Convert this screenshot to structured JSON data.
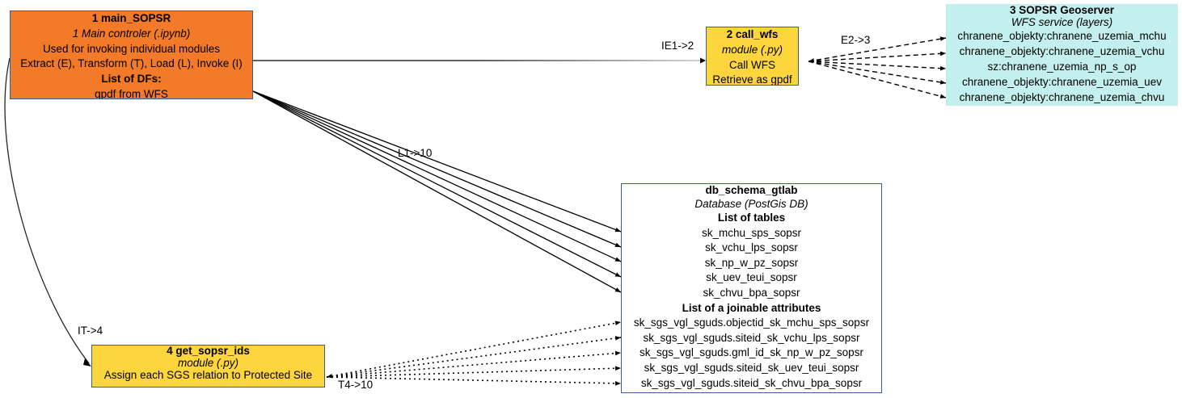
{
  "nodes": {
    "main": {
      "title": "1 main_SOPSR",
      "subtitle": "1 Main controler (.ipynb)",
      "line1": "Used for invoking individual modules",
      "line2": "Extract (E), Transform (T), Load (L), Invoke (I)",
      "dfs_header": "List of DFs:",
      "dfs_item": "gpdf from WFS",
      "color": "#f37a28"
    },
    "call_wfs": {
      "title": "2 call_wfs",
      "subtitle": "module (.py)",
      "line1": "Call WFS",
      "line2": "Retrieve as gpdf",
      "color": "#fdd53c"
    },
    "geoserver": {
      "title": "3 SOPSR Geoserver",
      "subtitle": "WFS service (layers)",
      "layers": [
        "chranene_objekty:chranene_uzemia_mchu",
        "chranene_objekty:chranene_uzemia_vchu",
        "sz:chranene_uzemia_np_s_op",
        "chranene_objekty:chranene_uzemia_uev",
        "chranene_objekty:chranene_uzemia_chvu"
      ],
      "color": "#c3efee"
    },
    "get_ids": {
      "title": "4 get_sopsr_ids",
      "subtitle": "module (.py)",
      "line1": "Assign each SGS relation to Protected Site",
      "color": "#fdd53c"
    },
    "db": {
      "title": "db_schema_gtlab",
      "subtitle": "Database (PostGis DB)",
      "tables_header": "List of tables",
      "tables": [
        "sk_mchu_sps_sopsr",
        "sk_vchu_lps_sopsr",
        "sk_np_w_pz_sopsr",
        "sk_uev_teui_sopsr",
        "sk_chvu_bpa_sopsr"
      ],
      "attrs_header": "List of a joinable attributes",
      "attrs": [
        "sk_sgs_vgl_sguds.objectid_sk_mchu_sps_sopsr",
        "sk_sgs_vgl_sguds.siteid_sk_vchu_lps_sopsr",
        "sk_sgs_vgl_sguds.gml_id_sk_np_w_pz_sopsr",
        "sk_sgs_vgl_sguds.siteid_sk_uev_teui_sopsr",
        "sk_sgs_vgl_sguds.siteid_sk_chvu_bpa_sopsr"
      ]
    }
  },
  "edges": {
    "ie1_2": "IE1->2",
    "e2_3": "E2->3",
    "l1_10": "L1->10",
    "it_4": "IT->4",
    "t4_10": "T4->10"
  },
  "colors": {
    "stroke": "#000000",
    "node_border": "#3a5d8f"
  }
}
